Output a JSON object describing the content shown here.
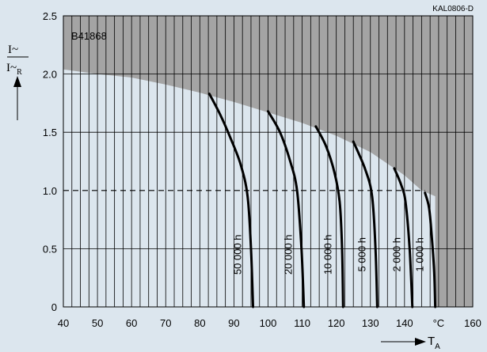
{
  "chart_data": {
    "type": "line",
    "code": "KAL0806-D",
    "part_number": "B41868",
    "ylabel": {
      "numerator": "I~",
      "denominator": "I~",
      "denominator_sub": "R"
    },
    "xlabel": {
      "main": "T",
      "sub": "A"
    },
    "x_unit": "°C",
    "xlim": [
      40,
      160
    ],
    "ylim": [
      0,
      2.5
    ],
    "x_ticks": [
      "40",
      "50",
      "60",
      "70",
      "80",
      "90",
      "100",
      "110",
      "120",
      "130",
      "140",
      "°C",
      "160"
    ],
    "y_ticks": [
      "0",
      "0.5",
      "1.0",
      "1.5",
      "2.0",
      "2.5"
    ],
    "reference_line_y": 1.0,
    "limit_boundary": [
      [
        40,
        2.04
      ],
      [
        50,
        2.0
      ],
      [
        60,
        1.97
      ],
      [
        70,
        1.91
      ],
      [
        80,
        1.84
      ],
      [
        90,
        1.76
      ],
      [
        100,
        1.67
      ],
      [
        110,
        1.58
      ],
      [
        120,
        1.47
      ],
      [
        130,
        1.33
      ],
      [
        140,
        1.13
      ],
      [
        145,
        1.0
      ],
      [
        149,
        0.95
      ]
    ],
    "series": [
      {
        "name": "50 000 h",
        "points": [
          [
            82.8,
            1.83
          ],
          [
            86,
            1.65
          ],
          [
            89,
            1.45
          ],
          [
            92,
            1.22
          ],
          [
            94,
            0.95
          ],
          [
            95,
            0.5
          ],
          [
            95.6,
            0
          ]
        ]
      },
      {
        "name": "20 000 h",
        "points": [
          [
            100,
            1.68
          ],
          [
            103.5,
            1.5
          ],
          [
            106.5,
            1.25
          ],
          [
            108.5,
            1.0
          ],
          [
            109.8,
            0.5
          ],
          [
            110.5,
            0
          ]
        ]
      },
      {
        "name": "10 000 h",
        "points": [
          [
            114,
            1.55
          ],
          [
            117,
            1.38
          ],
          [
            119.5,
            1.15
          ],
          [
            121,
            0.9
          ],
          [
            121.7,
            0.5
          ],
          [
            122,
            0
          ]
        ]
      },
      {
        "name": "5 000 h",
        "points": [
          [
            125,
            1.42
          ],
          [
            128.5,
            1.18
          ],
          [
            130.5,
            0.95
          ],
          [
            131.5,
            0.5
          ],
          [
            132,
            0
          ]
        ]
      },
      {
        "name": "2 000 h",
        "points": [
          [
            137,
            1.19
          ],
          [
            139,
            1.05
          ],
          [
            140.3,
            0.9
          ],
          [
            141.5,
            0.5
          ],
          [
            142.3,
            0
          ]
        ]
      },
      {
        "name": "1 000 h",
        "points": [
          [
            146,
            0.98
          ],
          [
            147.2,
            0.85
          ],
          [
            148,
            0.6
          ],
          [
            148.7,
            0.3
          ],
          [
            149,
            0
          ]
        ]
      }
    ]
  }
}
